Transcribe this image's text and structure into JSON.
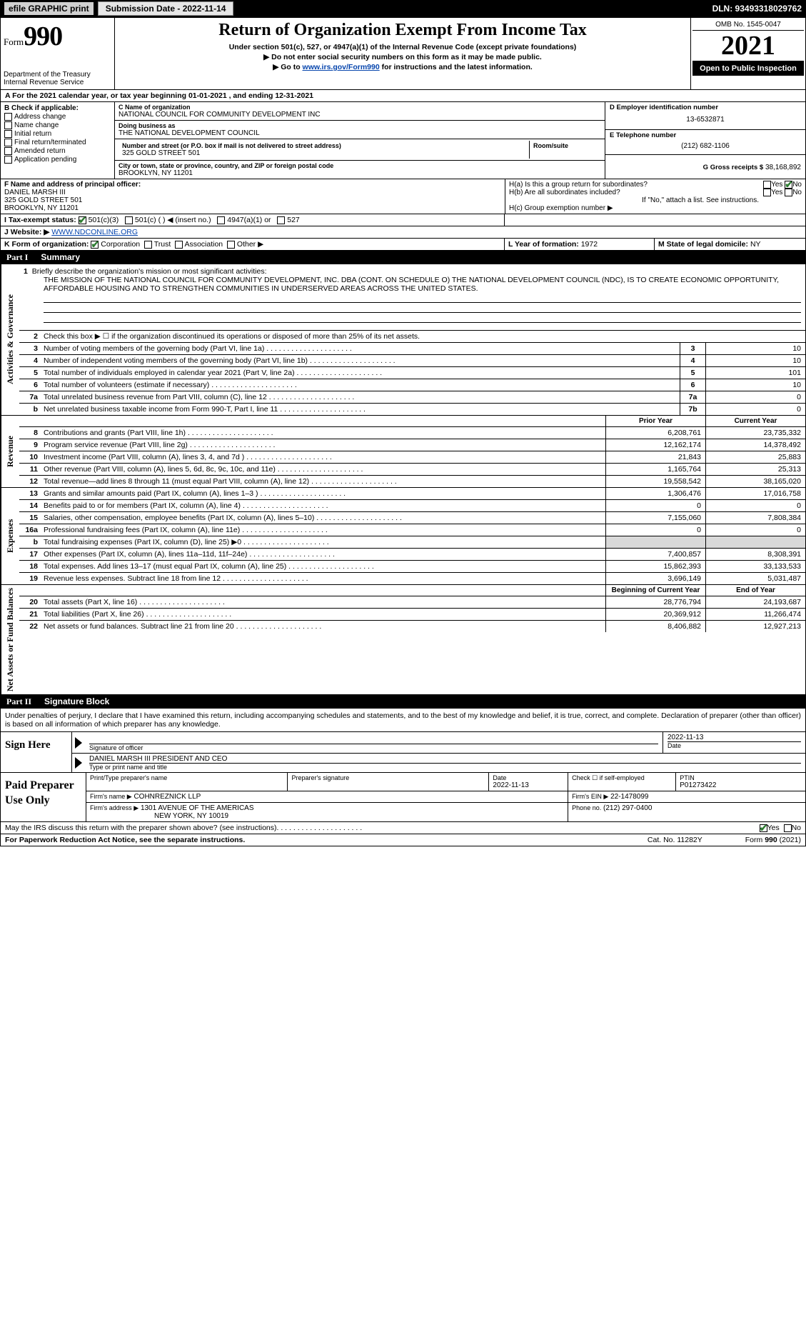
{
  "topbar": {
    "efile_label": "efile GRAPHIC print",
    "submission_btn": "Submission Date - 2022-11-14",
    "dln": "DLN: 93493318029762"
  },
  "header": {
    "form_word": "Form",
    "form_num": "990",
    "dept": "Department of the Treasury",
    "irs": "Internal Revenue Service",
    "title": "Return of Organization Exempt From Income Tax",
    "sub1": "Under section 501(c), 527, or 4947(a)(1) of the Internal Revenue Code (except private foundations)",
    "sub2": "▶ Do not enter social security numbers on this form as it may be made public.",
    "sub3_prefix": "▶ Go to ",
    "sub3_link": "www.irs.gov/Form990",
    "sub3_suffix": " for instructions and the latest information.",
    "omb": "OMB No. 1545-0047",
    "year": "2021",
    "open": "Open to Public Inspection"
  },
  "period": {
    "text": "A For the 2021 calendar year, or tax year beginning 01-01-2021     , and ending 12-31-2021"
  },
  "block_b": {
    "heading": "B Check if applicable:",
    "items": [
      "Address change",
      "Name change",
      "Initial return",
      "Final return/terminated",
      "Amended return",
      "Application pending"
    ]
  },
  "block_c": {
    "name_label": "C Name of organization",
    "name": "NATIONAL COUNCIL FOR COMMUNITY DEVELOPMENT INC",
    "dba_label": "Doing business as",
    "dba": "THE NATIONAL DEVELOPMENT COUNCIL",
    "addr_label": "Number and street (or P.O. box if mail is not delivered to street address)",
    "room_label": "Room/suite",
    "addr": "325 GOLD STREET 501",
    "city_label": "City or town, state or province, country, and ZIP or foreign postal code",
    "city": "BROOKLYN, NY  11201"
  },
  "block_d": {
    "label": "D Employer identification number",
    "ein": "13-6532871",
    "e_label": "E Telephone number",
    "phone": "(212) 682-1106",
    "g_label": "G Gross receipts $",
    "g_val": "38,168,892"
  },
  "block_f": {
    "label": "F  Name and address of principal officer:",
    "name": "DANIEL MARSH III",
    "addr1": "325 GOLD STREET 501",
    "addr2": "BROOKLYN, NY  11201"
  },
  "block_h": {
    "ha": "H(a)  Is this a group return for subordinates?",
    "hb": "H(b)  Are all subordinates included?",
    "hb_note": "If \"No,\" attach a list. See instructions.",
    "hc": "H(c)  Group exemption number ▶",
    "yes": "Yes",
    "no": "No"
  },
  "block_i": {
    "label": "I     Tax-exempt status:",
    "opt1": "501(c)(3)",
    "opt2": "501(c) (   ) ◀ (insert no.)",
    "opt3": "4947(a)(1) or",
    "opt4": "527"
  },
  "block_j": {
    "label": "J    Website: ▶",
    "value": " WWW.NDCONLINE.ORG"
  },
  "block_k": {
    "label": "K Form of organization:",
    "corp": "Corporation",
    "trust": "Trust",
    "assoc": "Association",
    "other": "Other ▶"
  },
  "block_l": {
    "label": "L Year of formation: ",
    "value": "1972"
  },
  "block_m": {
    "label": "M State of legal domicile: ",
    "value": "NY"
  },
  "part1": {
    "roman": "Part I",
    "title": "Summary"
  },
  "mission": {
    "prompt_num": "1",
    "prompt": "Briefly describe the organization's mission or most significant activities:",
    "text": "THE MISSION OF THE NATIONAL COUNCIL FOR COMMUNITY DEVELOPMENT, INC. DBA (CONT. ON SCHEDULE O) THE NATIONAL DEVELOPMENT COUNCIL (NDC), IS TO CREATE ECONOMIC OPPORTUNITY, AFFORDABLE HOUSING AND TO STRENGTHEN COMMUNITIES IN UNDERSERVED AREAS ACROSS THE UNITED STATES."
  },
  "side_labels": {
    "ag": "Activities & Governance",
    "rev": "Revenue",
    "exp": "Expenses",
    "net": "Net Assets or Fund Balances"
  },
  "gov_rows": [
    {
      "n": "2",
      "desc": "Check this box ▶ ☐  if the organization discontinued its operations or disposed of more than 25% of its net assets.",
      "box": "",
      "val": ""
    },
    {
      "n": "3",
      "desc": "Number of voting members of the governing body (Part VI, line 1a)",
      "box": "3",
      "val": "10"
    },
    {
      "n": "4",
      "desc": "Number of independent voting members of the governing body (Part VI, line 1b)",
      "box": "4",
      "val": "10"
    },
    {
      "n": "5",
      "desc": "Total number of individuals employed in calendar year 2021 (Part V, line 2a)",
      "box": "5",
      "val": "101"
    },
    {
      "n": "6",
      "desc": "Total number of volunteers (estimate if necessary)",
      "box": "6",
      "val": "10"
    },
    {
      "n": "7a",
      "desc": "Total unrelated business revenue from Part VIII, column (C), line 12",
      "box": "7a",
      "val": "0"
    },
    {
      "n": "b",
      "desc": "Net unrelated business taxable income from Form 990-T, Part I, line 11",
      "box": "7b",
      "val": "0"
    }
  ],
  "year_headers": {
    "prior": "Prior Year",
    "current": "Current Year"
  },
  "rev_rows": [
    {
      "n": "8",
      "desc": "Contributions and grants (Part VIII, line 1h)",
      "py": "6,208,761",
      "cy": "23,735,332"
    },
    {
      "n": "9",
      "desc": "Program service revenue (Part VIII, line 2g)",
      "py": "12,162,174",
      "cy": "14,378,492"
    },
    {
      "n": "10",
      "desc": "Investment income (Part VIII, column (A), lines 3, 4, and 7d )",
      "py": "21,843",
      "cy": "25,883"
    },
    {
      "n": "11",
      "desc": "Other revenue (Part VIII, column (A), lines 5, 6d, 8c, 9c, 10c, and 11e)",
      "py": "1,165,764",
      "cy": "25,313"
    },
    {
      "n": "12",
      "desc": "Total revenue—add lines 8 through 11 (must equal Part VIII, column (A), line 12)",
      "py": "19,558,542",
      "cy": "38,165,020"
    }
  ],
  "exp_rows": [
    {
      "n": "13",
      "desc": "Grants and similar amounts paid (Part IX, column (A), lines 1–3 )",
      "py": "1,306,476",
      "cy": "17,016,758"
    },
    {
      "n": "14",
      "desc": "Benefits paid to or for members (Part IX, column (A), line 4)",
      "py": "0",
      "cy": "0"
    },
    {
      "n": "15",
      "desc": "Salaries, other compensation, employee benefits (Part IX, column (A), lines 5–10)",
      "py": "7,155,060",
      "cy": "7,808,384"
    },
    {
      "n": "16a",
      "desc": "Professional fundraising fees (Part IX, column (A), line 11e)",
      "py": "0",
      "cy": "0"
    },
    {
      "n": "b",
      "desc": "Total fundraising expenses (Part IX, column (D), line 25) ▶0",
      "py": "GREY",
      "cy": "GREY"
    },
    {
      "n": "17",
      "desc": "Other expenses (Part IX, column (A), lines 11a–11d, 11f–24e)",
      "py": "7,400,857",
      "cy": "8,308,391"
    },
    {
      "n": "18",
      "desc": "Total expenses. Add lines 13–17 (must equal Part IX, column (A), line 25)",
      "py": "15,862,393",
      "cy": "33,133,533"
    },
    {
      "n": "19",
      "desc": "Revenue less expenses. Subtract line 18 from line 12",
      "py": "3,696,149",
      "cy": "5,031,487"
    }
  ],
  "net_headers": {
    "begin": "Beginning of Current Year",
    "end": "End of Year"
  },
  "net_rows": [
    {
      "n": "20",
      "desc": "Total assets (Part X, line 16)",
      "py": "28,776,794",
      "cy": "24,193,687"
    },
    {
      "n": "21",
      "desc": "Total liabilities (Part X, line 26)",
      "py": "20,369,912",
      "cy": "11,266,474"
    },
    {
      "n": "22",
      "desc": "Net assets or fund balances. Subtract line 21 from line 20",
      "py": "8,406,882",
      "cy": "12,927,213"
    }
  ],
  "part2": {
    "roman": "Part II",
    "title": "Signature Block"
  },
  "sig_intro": "Under penalties of perjury, I declare that I have examined this return, including accompanying schedules and statements, and to the best of my knowledge and belief, it is true, correct, and complete. Declaration of preparer (other than officer) is based on all information of which preparer has any knowledge.",
  "sign_here": {
    "label": "Sign Here",
    "sig_label": "Signature of officer",
    "date_label": "Date",
    "date_val": "2022-11-13",
    "name": "DANIEL MARSH III  PRESIDENT AND CEO",
    "name_label": "Type or print name and title"
  },
  "paid_prep": {
    "label": "Paid Preparer Use Only",
    "print_label": "Print/Type preparer's name",
    "sig_label": "Preparer's signature",
    "date_label": "Date",
    "date_val": "2022-11-13",
    "check_label": "Check ☐ if self-employed",
    "ptin_label": "PTIN",
    "ptin": "P01273422",
    "firm_name_label": "Firm's name    ▶",
    "firm_name": "COHNREZNICK LLP",
    "firm_ein_label": "Firm's EIN ▶",
    "firm_ein": "22-1478099",
    "firm_addr_label": "Firm's address ▶",
    "firm_addr1": "1301 AVENUE OF THE AMERICAS",
    "firm_addr2": "NEW YORK, NY  10019",
    "phone_label": "Phone no.",
    "phone": "(212) 297-0400"
  },
  "discuss": {
    "text": "May the IRS discuss this return with the preparer shown above? (see instructions)",
    "yes": "Yes",
    "no": "No"
  },
  "footer": {
    "pra": "For Paperwork Reduction Act Notice, see the separate instructions.",
    "cat": "Cat. No. 11282Y",
    "form": "Form 990 (2021)"
  }
}
